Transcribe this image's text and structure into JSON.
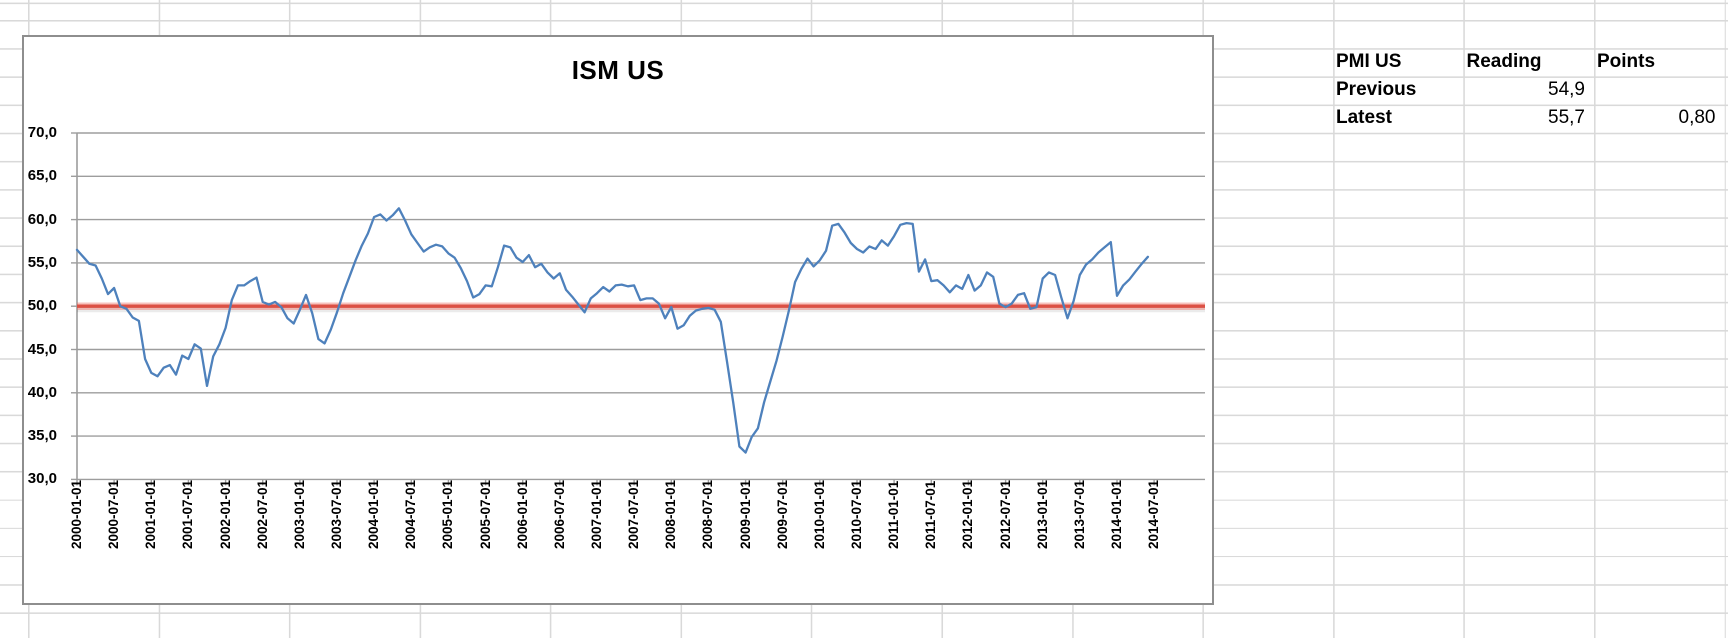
{
  "colors": {
    "series_line": "#4E81BC",
    "threshold_core": "#DC5044",
    "threshold_glow": "rgba(236,110,98,0.42)",
    "threshold_shadow": "rgba(0,0,0,0.08)",
    "plot_gridline": "#9D9D9D",
    "sheet_gridline": "#D9D9D9",
    "chart_border": "#8E8E8E",
    "text": "#000000"
  },
  "chart_data": {
    "type": "line",
    "title": "ISM US",
    "series_name": "ISM US",
    "frequency": "monthly",
    "x_start": "2000-01",
    "x_end": "2014-06",
    "values": [
      56.5,
      55.7,
      54.9,
      54.7,
      53.2,
      51.4,
      52.1,
      50.0,
      49.7,
      48.7,
      48.3,
      43.9,
      42.3,
      41.9,
      42.9,
      43.2,
      42.1,
      44.3,
      43.9,
      45.6,
      45.1,
      40.8,
      44.2,
      45.6,
      47.5,
      50.7,
      52.4,
      52.4,
      52.9,
      53.3,
      50.5,
      50.2,
      50.5,
      49.9,
      48.6,
      48.0,
      49.6,
      51.3,
      49.2,
      46.2,
      45.7,
      47.3,
      49.3,
      51.5,
      53.4,
      55.3,
      57.0,
      58.4,
      60.3,
      60.6,
      59.9,
      60.5,
      61.3,
      59.9,
      58.3,
      57.3,
      56.3,
      56.8,
      57.1,
      56.9,
      56.1,
      55.6,
      54.4,
      52.9,
      51.0,
      51.4,
      52.4,
      52.3,
      54.5,
      57.0,
      56.8,
      55.6,
      55.1,
      55.9,
      54.5,
      54.9,
      53.9,
      53.2,
      53.8,
      51.9,
      51.1,
      50.2,
      49.3,
      50.9,
      51.5,
      52.2,
      51.7,
      52.4,
      52.5,
      52.3,
      52.4,
      50.7,
      50.9,
      50.9,
      50.3,
      48.6,
      49.9,
      47.4,
      47.8,
      48.9,
      49.5,
      49.7,
      49.8,
      49.6,
      48.2,
      43.6,
      38.9,
      33.8,
      33.1,
      34.9,
      35.9,
      38.9,
      41.3,
      43.7,
      46.5,
      49.5,
      52.8,
      54.3,
      55.5,
      54.6,
      55.3,
      56.4,
      59.3,
      59.5,
      58.5,
      57.3,
      56.6,
      56.2,
      56.9,
      56.6,
      57.6,
      57.0,
      58.1,
      59.4,
      59.6,
      59.5,
      54.0,
      55.4,
      52.9,
      53.0,
      52.4,
      51.6,
      52.4,
      52.0,
      53.6,
      51.8,
      52.4,
      53.9,
      53.4,
      50.3,
      49.9,
      50.3,
      51.3,
      51.5,
      49.7,
      49.9,
      53.2,
      53.9,
      53.6,
      51.0,
      48.6,
      50.6,
      53.6,
      54.8,
      55.4,
      56.2,
      56.8,
      57.4,
      51.2,
      52.4,
      53.1,
      54.0,
      54.9,
      55.7
    ],
    "threshold": 50,
    "ylim": [
      30,
      70
    ],
    "y_tick_labels": [
      "70,0",
      "65,0",
      "60,0",
      "55,0",
      "50,0",
      "45,0",
      "40,0",
      "35,0",
      "30,0"
    ],
    "x_tick_labels": [
      "2000-01-01",
      "2000-07-01",
      "2001-01-01",
      "2001-07-01",
      "2002-01-01",
      "2002-07-01",
      "2003-01-01",
      "2003-07-01",
      "2004-01-01",
      "2004-07-01",
      "2005-01-01",
      "2005-07-01",
      "2006-01-01",
      "2006-07-01",
      "2007-01-01",
      "2007-07-01",
      "2008-01-01",
      "2008-07-01",
      "2009-01-01",
      "2009-07-01",
      "2010-01-01",
      "2010-07-01",
      "2011-01-01",
      "2011-07-01",
      "2012-01-01",
      "2012-07-01",
      "2013-01-01",
      "2013-07-01",
      "2014-01-01",
      "2014-07-01"
    ],
    "legend": "none",
    "grid": "horizontal"
  },
  "pmi_table": {
    "headers": [
      "PMI US",
      "Reading",
      "Points"
    ],
    "rows": [
      {
        "label": "Previous",
        "reading": "54,9",
        "points": ""
      },
      {
        "label": "Latest",
        "reading": "55,7",
        "points": "0,80"
      }
    ]
  }
}
